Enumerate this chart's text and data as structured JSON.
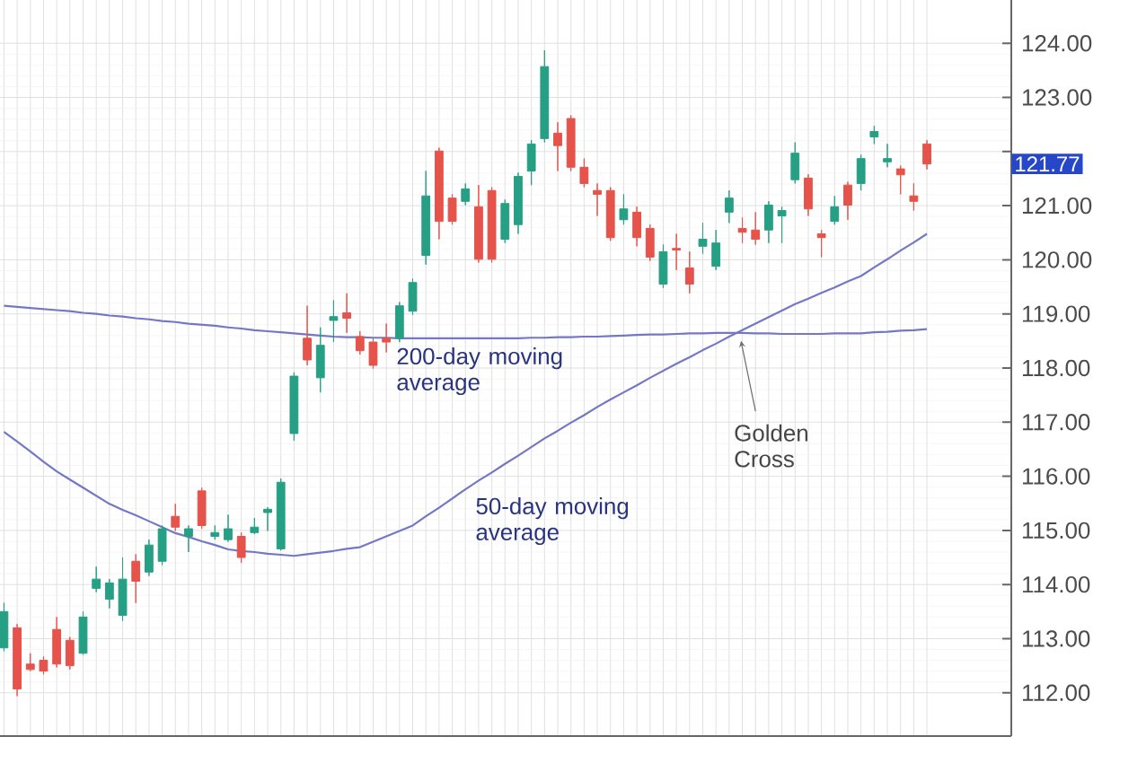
{
  "chart_data": {
    "type": "candlestick",
    "categories": [
      null,
      null,
      null,
      null,
      null,
      null,
      null,
      null,
      null,
      null,
      null,
      null,
      null,
      null,
      null,
      null,
      null,
      null,
      null,
      null,
      null,
      null,
      null,
      null,
      null,
      null,
      null,
      null,
      null,
      null,
      null,
      null,
      null,
      null,
      null,
      null,
      null,
      null,
      null,
      null,
      null,
      null,
      null,
      null,
      null,
      null,
      null,
      null,
      null,
      null,
      null,
      null,
      null,
      null,
      null,
      null,
      null,
      null,
      null,
      null,
      null,
      null,
      null,
      null,
      null,
      null,
      null,
      null,
      null,
      null,
      null
    ],
    "series": [
      {
        "ohlc": [
          [
            112.83,
            113.66,
            112.77,
            113.5
          ],
          [
            113.2,
            113.27,
            111.94,
            112.07
          ],
          [
            112.53,
            112.73,
            112.4,
            112.43
          ],
          [
            112.6,
            112.67,
            112.34,
            112.4
          ],
          [
            113.17,
            113.4,
            112.47,
            112.53
          ],
          [
            112.97,
            113.03,
            112.43,
            112.5
          ],
          [
            112.73,
            113.5,
            112.7,
            113.4
          ],
          [
            113.93,
            114.33,
            113.86,
            114.1
          ],
          [
            113.73,
            114.1,
            113.56,
            114.03
          ],
          [
            113.43,
            114.5,
            113.33,
            114.1
          ],
          [
            114.43,
            114.56,
            113.66,
            114.06
          ],
          [
            114.23,
            114.83,
            114.16,
            114.73
          ],
          [
            114.43,
            115.09,
            114.36,
            115.03
          ],
          [
            115.26,
            115.49,
            114.99,
            115.06
          ],
          [
            114.89,
            115.09,
            114.6,
            115.03
          ],
          [
            115.73,
            115.79,
            115.03,
            115.09
          ],
          [
            114.89,
            115.09,
            114.83,
            114.96
          ],
          [
            114.83,
            115.29,
            114.79,
            115.03
          ],
          [
            114.89,
            114.96,
            114.4,
            114.5
          ],
          [
            114.96,
            115.23,
            114.93,
            115.06
          ],
          [
            115.33,
            115.43,
            114.99,
            115.39
          ],
          [
            114.66,
            115.96,
            114.63,
            115.89
          ],
          [
            116.79,
            117.92,
            116.66,
            117.85
          ],
          [
            118.55,
            119.15,
            118.05,
            118.15
          ],
          [
            117.82,
            118.75,
            117.55,
            118.42
          ],
          [
            118.88,
            119.25,
            118.48,
            118.95
          ],
          [
            119.02,
            119.38,
            118.65,
            118.92
          ],
          [
            118.58,
            118.68,
            118.25,
            118.32
          ],
          [
            118.48,
            118.55,
            117.99,
            118.05
          ],
          [
            118.55,
            118.82,
            118.29,
            118.48
          ],
          [
            118.55,
            119.22,
            118.48,
            119.15
          ],
          [
            119.05,
            119.65,
            118.98,
            119.58
          ],
          [
            120.08,
            121.64,
            119.91,
            121.18
          ],
          [
            122.01,
            122.07,
            120.38,
            120.71
          ],
          [
            121.14,
            121.21,
            120.65,
            120.71
          ],
          [
            121.08,
            121.41,
            121.01,
            121.31
          ],
          [
            120.98,
            121.38,
            119.95,
            120.01
          ],
          [
            121.28,
            121.34,
            119.95,
            120.01
          ],
          [
            120.38,
            121.11,
            120.31,
            121.04
          ],
          [
            120.65,
            121.61,
            120.48,
            121.54
          ],
          [
            121.64,
            122.21,
            121.38,
            122.14
          ],
          [
            122.24,
            123.87,
            122.17,
            123.57
          ],
          [
            122.34,
            122.54,
            121.64,
            122.11
          ],
          [
            122.61,
            122.67,
            121.64,
            121.71
          ],
          [
            121.71,
            121.87,
            121.34,
            121.41
          ],
          [
            121.28,
            121.41,
            120.81,
            121.21
          ],
          [
            121.28,
            121.34,
            120.35,
            120.41
          ],
          [
            120.74,
            121.21,
            120.65,
            120.94
          ],
          [
            120.88,
            120.98,
            120.25,
            120.41
          ],
          [
            120.58,
            120.65,
            119.98,
            120.05
          ],
          [
            119.55,
            120.28,
            119.48,
            120.15
          ],
          [
            120.21,
            120.48,
            119.81,
            120.18
          ],
          [
            119.85,
            120.15,
            119.38,
            119.55
          ],
          [
            120.25,
            120.68,
            120.11,
            120.38
          ],
          [
            119.88,
            120.55,
            119.81,
            120.31
          ],
          [
            120.88,
            121.28,
            120.68,
            121.14
          ],
          [
            120.58,
            120.78,
            120.31,
            120.51
          ],
          [
            120.55,
            120.88,
            120.28,
            120.38
          ],
          [
            120.55,
            121.08,
            120.31,
            121.01
          ],
          [
            120.81,
            120.98,
            120.31,
            120.91
          ],
          [
            121.48,
            122.17,
            121.41,
            121.97
          ],
          [
            121.51,
            121.58,
            120.81,
            120.94
          ],
          [
            120.48,
            120.55,
            120.05,
            120.41
          ],
          [
            120.71,
            121.18,
            120.65,
            120.98
          ],
          [
            121.38,
            121.44,
            120.74,
            121.01
          ],
          [
            121.41,
            121.94,
            121.28,
            121.87
          ],
          [
            122.27,
            122.47,
            122.14,
            122.37
          ],
          [
            121.81,
            122.14,
            121.71,
            121.87
          ],
          [
            121.68,
            121.74,
            121.21,
            121.57
          ],
          [
            121.18,
            121.41,
            120.91,
            121.08
          ],
          [
            122.14,
            122.21,
            121.67,
            121.77
          ]
        ],
        "colors": [
          "#26a085",
          "#e5534b",
          "#e5534b",
          "#e5534b",
          "#e5534b",
          "#e5534b",
          "#26a085",
          "#26a085",
          "#26a085",
          "#26a085",
          "#e5534b",
          "#26a085",
          "#26a085",
          "#e5534b",
          "#26a085",
          "#e5534b",
          "#26a085",
          "#26a085",
          "#e5534b",
          "#26a085",
          "#26a085",
          "#26a085",
          "#26a085",
          "#e5534b",
          "#26a085",
          "#26a085",
          "#e5534b",
          "#e5534b",
          "#e5534b",
          "#e5534b",
          "#26a085",
          "#26a085",
          "#26a085",
          "#e5534b",
          "#e5534b",
          "#26a085",
          "#e5534b",
          "#e5534b",
          "#26a085",
          "#26a085",
          "#26a085",
          "#26a085",
          "#e5534b",
          "#e5534b",
          "#e5534b",
          "#e5534b",
          "#e5534b",
          "#26a085",
          "#e5534b",
          "#e5534b",
          "#26a085",
          "#e5534b",
          "#e5534b",
          "#26a085",
          "#26a085",
          "#26a085",
          "#e5534b",
          "#e5534b",
          "#26a085",
          "#26a085",
          "#26a085",
          "#e5534b",
          "#e5534b",
          "#26a085",
          "#e5534b",
          "#26a085",
          "#26a085",
          "#26a085",
          "#e5534b",
          "#e5534b",
          "#e5534b"
        ]
      },
      {
        "type": "line",
        "name": "200-day moving average",
        "color": "#7478c4",
        "values": [
          119.15,
          119.13,
          119.11,
          119.09,
          119.07,
          119.05,
          119.02,
          119.0,
          118.97,
          118.95,
          118.92,
          118.9,
          118.87,
          118.85,
          118.82,
          118.8,
          118.78,
          118.75,
          118.73,
          118.7,
          118.68,
          118.66,
          118.64,
          118.62,
          118.6,
          118.58,
          118.57,
          118.57,
          118.56,
          118.56,
          118.55,
          118.55,
          118.55,
          118.55,
          118.55,
          118.55,
          118.55,
          118.55,
          118.55,
          118.55,
          118.56,
          118.56,
          118.57,
          118.57,
          118.58,
          118.58,
          118.59,
          118.6,
          118.61,
          118.62,
          118.62,
          118.63,
          118.64,
          118.64,
          118.65,
          118.65,
          118.65,
          118.64,
          118.64,
          118.63,
          118.63,
          118.63,
          118.63,
          118.64,
          118.64,
          118.64,
          118.66,
          118.67,
          118.69,
          118.7,
          118.72
        ]
      },
      {
        "type": "line",
        "name": "50-day moving average",
        "color": "#7478c4",
        "values": [
          116.82,
          116.64,
          116.46,
          116.27,
          116.09,
          115.94,
          115.79,
          115.64,
          115.49,
          115.38,
          115.28,
          115.17,
          115.06,
          114.95,
          114.88,
          114.8,
          114.73,
          114.65,
          114.62,
          114.6,
          114.57,
          114.55,
          114.53,
          114.56,
          114.59,
          114.62,
          114.66,
          114.69,
          114.79,
          114.89,
          114.99,
          115.09,
          115.26,
          115.42,
          115.59,
          115.76,
          115.92,
          116.07,
          116.23,
          116.38,
          116.54,
          116.7,
          116.84,
          116.99,
          117.13,
          117.28,
          117.42,
          117.55,
          117.68,
          117.82,
          117.95,
          118.08,
          118.2,
          118.33,
          118.45,
          118.58,
          118.7,
          118.82,
          118.94,
          119.06,
          119.18,
          119.28,
          119.39,
          119.49,
          119.6,
          119.7,
          119.86,
          120.01,
          120.17,
          120.32,
          120.48
        ]
      }
    ],
    "ylim": [
      111.2,
      124.8
    ],
    "yticks": [
      {
        "value": 112,
        "label": "112.00"
      },
      {
        "value": 113,
        "label": "113.00"
      },
      {
        "value": 114,
        "label": "114.00"
      },
      {
        "value": 115,
        "label": "115.00"
      },
      {
        "value": 116,
        "label": "116.00"
      },
      {
        "value": 117,
        "label": "117.00"
      },
      {
        "value": 118,
        "label": "118.00"
      },
      {
        "value": 119,
        "label": "119.00"
      },
      {
        "value": 120,
        "label": "120.00"
      },
      {
        "value": 121,
        "label": "121.00"
      },
      {
        "value": 122,
        "label": null
      },
      {
        "value": 123,
        "label": "123.00"
      },
      {
        "value": 124,
        "label": "124.00"
      }
    ],
    "annotations": [
      "121.77",
      "Golden Cross"
    ],
    "grid": true,
    "tick_labels": "y"
  }
}
